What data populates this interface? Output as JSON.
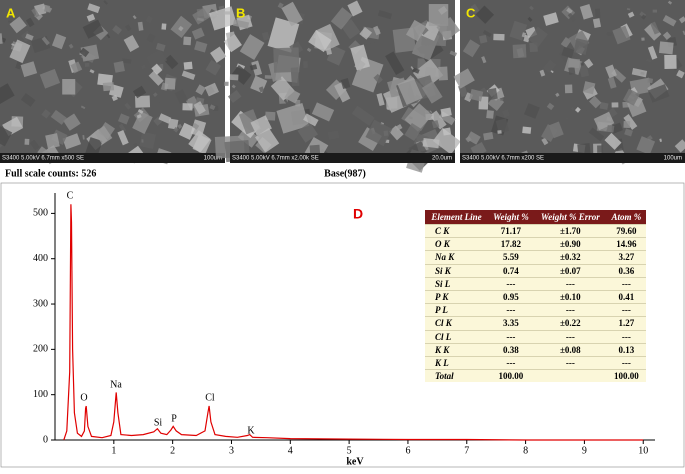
{
  "panels": [
    {
      "letter": "A",
      "info": "S3400 5.00kV 6.7mm x500 SE",
      "scale": "100um"
    },
    {
      "letter": "B",
      "info": "S3400 5.00kV 6.7mm x2.00k SE",
      "scale": "20.0um"
    },
    {
      "letter": "C",
      "info": "S3400 5.00kV 6.7mm x200 SE",
      "scale": "100um"
    }
  ],
  "chart_data": {
    "type": "line",
    "header_left": "Full scale counts: 526",
    "header_center": "Base(987)",
    "panel_label": "D",
    "xlabel": "keV",
    "color": "#e00000",
    "x": [
      0.15,
      0.2,
      0.25,
      0.27,
      0.28,
      0.3,
      0.33,
      0.38,
      0.45,
      0.5,
      0.52,
      0.53,
      0.56,
      0.62,
      0.8,
      0.95,
      1.0,
      1.04,
      1.07,
      1.12,
      1.3,
      1.5,
      1.68,
      1.74,
      1.8,
      1.9,
      1.97,
      2.01,
      2.06,
      2.15,
      2.4,
      2.55,
      2.6,
      2.62,
      2.65,
      2.72,
      2.9,
      3.1,
      3.27,
      3.31,
      3.36,
      3.6,
      4.0,
      5,
      6,
      7,
      8,
      9,
      10
    ],
    "values": [
      0,
      20,
      150,
      520,
      480,
      200,
      60,
      15,
      8,
      20,
      70,
      75,
      30,
      8,
      5,
      10,
      40,
      105,
      60,
      12,
      10,
      12,
      18,
      25,
      15,
      12,
      22,
      30,
      20,
      12,
      10,
      20,
      60,
      75,
      40,
      12,
      8,
      6,
      10,
      12,
      6,
      5,
      3,
      2,
      1,
      1,
      0,
      0,
      0
    ],
    "peak_labels": [
      "C",
      "O",
      "Na",
      "Si",
      "P",
      "Cl",
      "K"
    ],
    "xlim": [
      0,
      10.2
    ],
    "ylim": [
      0,
      545
    ],
    "xticks": [
      1,
      2,
      3,
      4,
      5,
      6,
      7,
      8,
      9,
      10
    ],
    "yticks": [
      0,
      100,
      200,
      300,
      400,
      500
    ]
  },
  "table": {
    "header": [
      "Element Line",
      "Weight %",
      "Weight % Error",
      "Atom %"
    ],
    "rows": [
      [
        "C K",
        "71.17",
        "±1.70",
        "79.60"
      ],
      [
        "O K",
        "17.82",
        "±0.90",
        "14.96"
      ],
      [
        "Na K",
        "5.59",
        "±0.32",
        "3.27"
      ],
      [
        "Si K",
        "0.74",
        "±0.07",
        "0.36"
      ],
      [
        "Si L",
        "---",
        "---",
        "---"
      ],
      [
        "P K",
        "0.95",
        "±0.10",
        "0.41"
      ],
      [
        "P L",
        "---",
        "---",
        "---"
      ],
      [
        "Cl K",
        "3.35",
        "±0.22",
        "1.27"
      ],
      [
        "Cl L",
        "---",
        "---",
        "---"
      ],
      [
        "K K",
        "0.38",
        "±0.08",
        "0.13"
      ],
      [
        "K L",
        "---",
        "---",
        "---"
      ],
      [
        "Total",
        "100.00",
        null,
        "100.00"
      ]
    ]
  }
}
